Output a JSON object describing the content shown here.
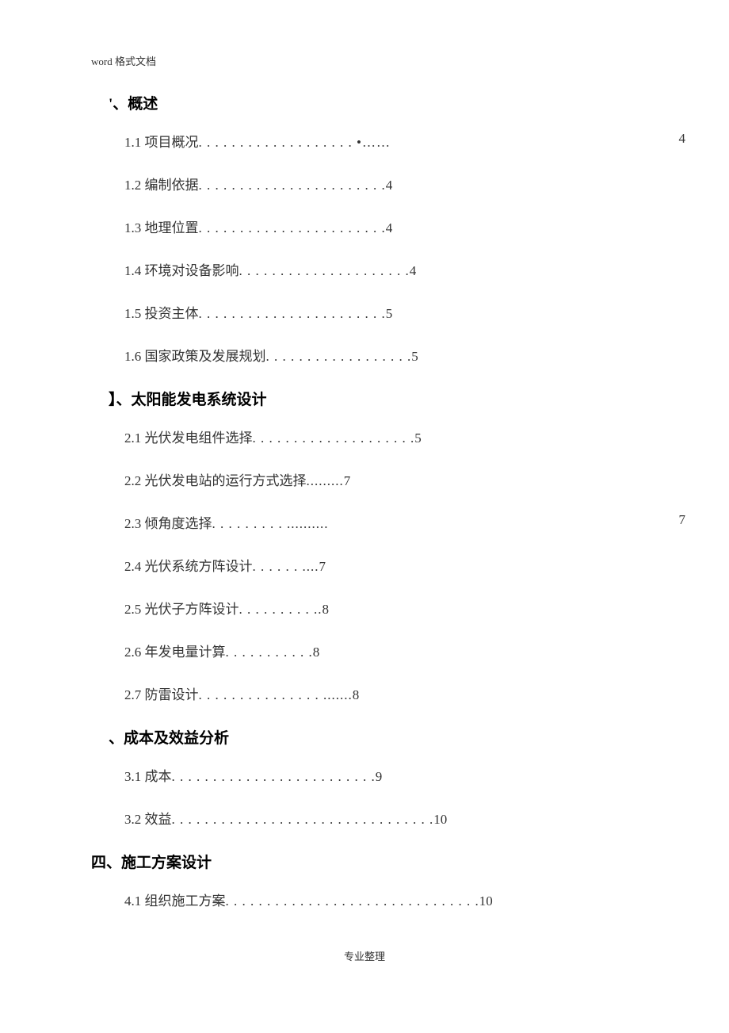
{
  "header": "word 格式文档",
  "footer": "专业整理",
  "sections": [
    {
      "heading": "'、概述",
      "items": [
        {
          "text": "1.1 项目概况",
          "dots": "  . . . . . . . . . . . . . . . . . . .    •……",
          "page": "4",
          "farRight": true
        },
        {
          "text": "1.2 编制依据",
          "dots": "  . . . . . . . . . . . . . . . . . . . . . . . ",
          "page": "4"
        },
        {
          "text": "1.3 地理位置",
          "dots": "  . . . . . . . . . . . . . . . . . . . . . . . ",
          "page": "4"
        },
        {
          "text": "1.4 环境对设备影响",
          "dots": " . . . . . . . . . . . . . . . . . . . . . ",
          "page": "4"
        },
        {
          "text": "1.5 投资主体",
          "dots": "  . . . . . . . . . . . . . . . . . . . . . . . ",
          "page": "5"
        },
        {
          "text": "1.6 国家政策及发展规划",
          "dots": "  . . . . . . . . . . . . . . . . . . ",
          "page": "5"
        }
      ]
    },
    {
      "heading": "】、太阳能发电系统设计",
      "items": [
        {
          "text": "2.1 光伏发电组件选择",
          "dots": "  . . . . . . . . . . . . . . . . . . . . ",
          "page": "5"
        },
        {
          "text": "2.2 光伏发电站的运行方式选择",
          "dots": "                  ......... ",
          "page": "7"
        },
        {
          "text": "2.3 倾角度选择",
          "dots": " . . . . . . . . .                         ..........",
          "page": "7",
          "farRight": true
        },
        {
          "text": "2.4 光伏系统方阵设计",
          "dots": "  . . . . . .                     ....",
          "page": "7"
        },
        {
          "text": "2.5 光伏子方阵设计",
          "dots": " . . . . . . . . .                  ..",
          "page": "8"
        },
        {
          "text": "2.6 年发电量计算",
          "dots": " . . . . . . . . . . .               ",
          "page": "8"
        },
        {
          "text": "2.7 防雷设计",
          "dots": " . . . . . . . . . . . . . . .                .......",
          "page": "8"
        }
      ]
    },
    {
      "heading": "、成本及效益分析",
      "items": [
        {
          "text": "3.1 成本",
          "dots": "  . . . . . . . . . . . . . . . . . . . . . . . . . ",
          "page": "9"
        },
        {
          "text": "3.2 效益",
          "dots": " . . . . . . . . . . . . . . . . . . . . . . . . . . . . . . . .    ",
          "page": "10"
        }
      ]
    },
    {
      "heading": "四、施工方案设计",
      "headingOutdent": true,
      "items": [
        {
          "text": "4.1 组织施工方案",
          "dots": "  . . . . . . . . . . . . . . . . . . . . . . . . . . . . . . . ",
          "page": "10"
        }
      ]
    }
  ]
}
